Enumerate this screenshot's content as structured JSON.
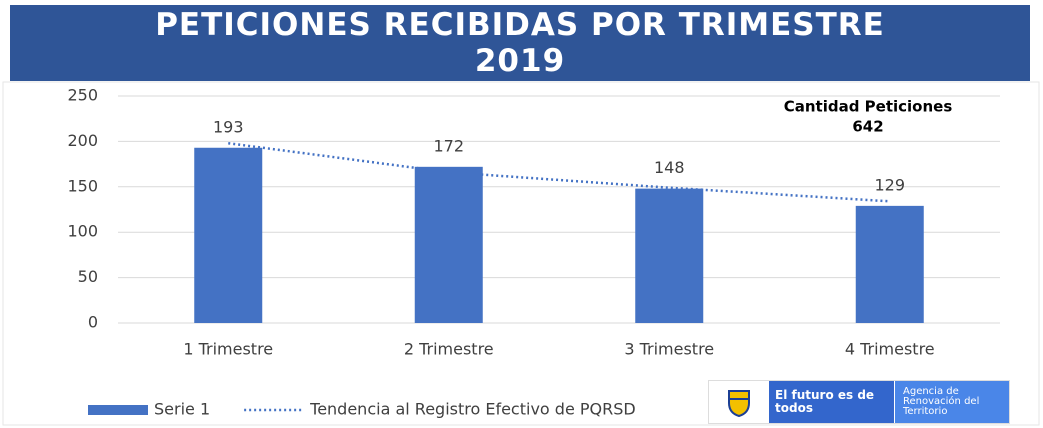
{
  "chart_data": {
    "type": "bar",
    "title": "PETICIONES RECIBIDAS POR TRIMESTRE 2019",
    "categories": [
      "1 Trimestre",
      "2 Trimestre",
      "3 Trimestre",
      "4 Trimestre"
    ],
    "series": [
      {
        "name": "Serie 1",
        "type": "bar",
        "color": "#4472c4",
        "values": [
          193,
          172,
          148,
          129
        ],
        "data_labels": true
      },
      {
        "name": "Tendencia al Registro Efectivo de PQRSD",
        "type": "line",
        "style": "dotted",
        "color": "#4472c4",
        "values": [
          198,
          166,
          149,
          134
        ]
      }
    ],
    "ylim": [
      0,
      250
    ],
    "yticks": [
      0,
      50,
      100,
      150,
      200,
      250
    ],
    "grid": true,
    "annotation": {
      "label": "Cantidad Peticiones",
      "value": 642
    },
    "legend": "bottom-left"
  },
  "footer": {
    "logo_text": "El futuro es de todos",
    "agency": "Agencia de Renovación del Territorio"
  }
}
